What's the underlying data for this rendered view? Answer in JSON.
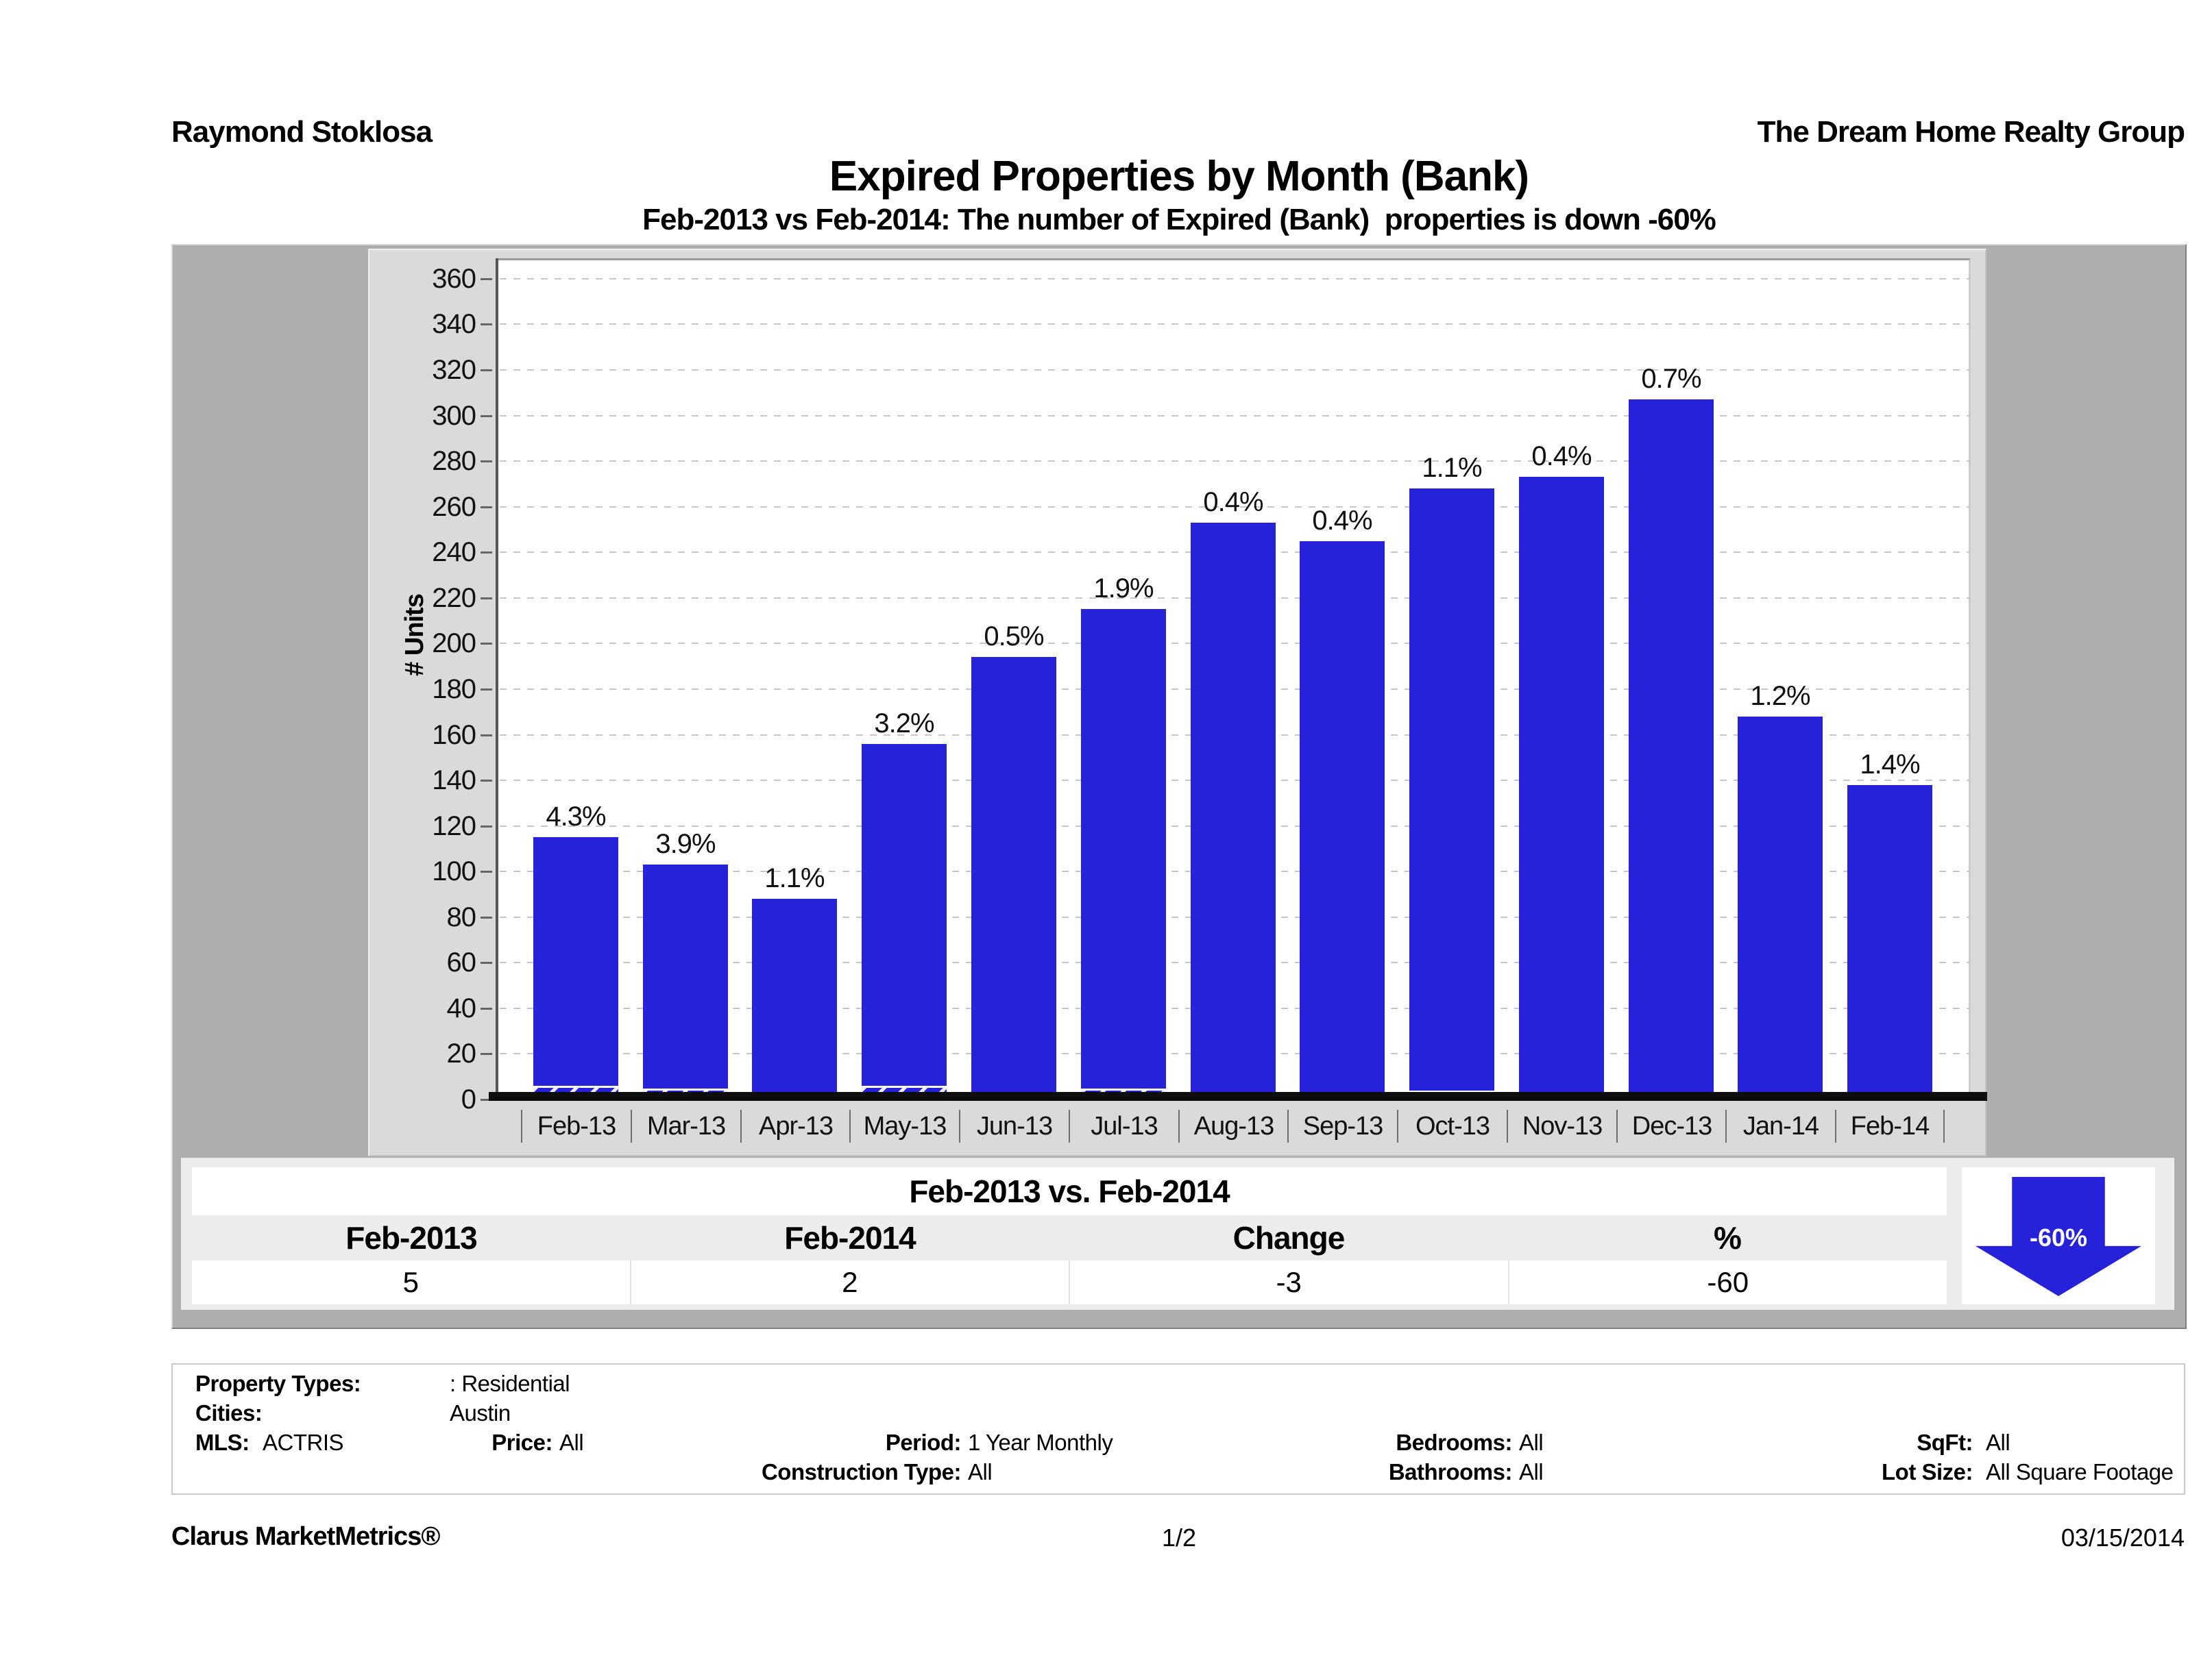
{
  "header": {
    "agent": "Raymond Stoklosa",
    "company": "The Dream Home Realty Group"
  },
  "title": "Expired Properties by Month (Bank)",
  "subtitle": "Feb-2013 vs Feb-2014: The number of Expired (Bank)  properties is down -60%",
  "chart_data": {
    "type": "bar",
    "title": "Expired Properties by Month (Bank)",
    "categories": [
      "Feb-13",
      "Mar-13",
      "Apr-13",
      "May-13",
      "Jun-13",
      "Jul-13",
      "Aug-13",
      "Sep-13",
      "Oct-13",
      "Nov-13",
      "Dec-13",
      "Jan-14",
      "Feb-14"
    ],
    "series": [
      {
        "name": "Expired properties (total)",
        "values": [
          115,
          103,
          88,
          156,
          194,
          215,
          253,
          245,
          268,
          273,
          307,
          168,
          138
        ]
      },
      {
        "name": "Expired (Bank) properties (hatched base segment)",
        "values": [
          5,
          4,
          1,
          5,
          1,
          4,
          1,
          1,
          3,
          1,
          2,
          2,
          2
        ]
      }
    ],
    "bar_labels": [
      "4.3%",
      "3.9%",
      "1.1%",
      "3.2%",
      "0.5%",
      "1.9%",
      "0.4%",
      "0.4%",
      "1.1%",
      "0.4%",
      "0.7%",
      "1.2%",
      "1.4%"
    ],
    "xlabel": "",
    "ylabel": "# Units",
    "ylim": [
      0,
      360
    ],
    "ytick_step": 20,
    "grid": "horizontal dashed",
    "legend_position": "none",
    "bar_color": "#2522d9"
  },
  "comparison_table": {
    "title": "Feb-2013 vs. Feb-2014",
    "columns": [
      "Feb-2013",
      "Feb-2014",
      "Change",
      "%"
    ],
    "values": [
      "5",
      "2",
      "-3",
      "-60"
    ],
    "arrow_label": "-60%",
    "arrow_color": "#2522d9"
  },
  "filters": {
    "property_types_label": "Property Types:",
    "property_types": ": Residential",
    "cities_label": "Cities:",
    "cities": "Austin",
    "mls_label": "MLS:",
    "mls": "ACTRIS",
    "price_label": "Price:",
    "price": "All",
    "period_label": "Period:",
    "period": "1 Year Monthly",
    "construction_label": "Construction Type:",
    "construction": "All",
    "bedrooms_label": "Bedrooms:",
    "bedrooms": "All",
    "bathrooms_label": "Bathrooms:",
    "bathrooms": "All",
    "sqft_label": "SqFt:",
    "sqft": "All",
    "lot_size_label": "Lot Size:",
    "lot_size": "All Square Footage"
  },
  "footer": {
    "brand": "Clarus MarketMetrics®",
    "page": "1/2",
    "date": "03/15/2014"
  }
}
